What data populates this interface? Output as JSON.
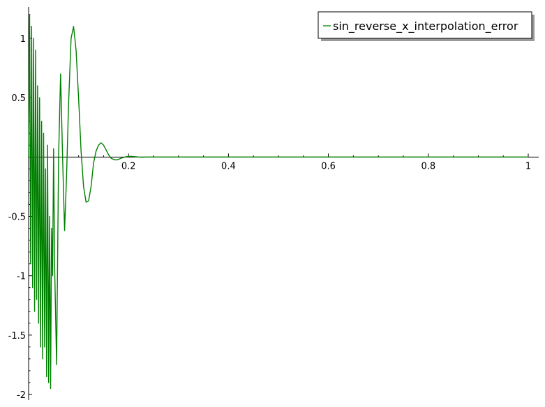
{
  "chart_data": {
    "type": "line",
    "title": "",
    "xlabel": "",
    "ylabel": "",
    "xlim": [
      0,
      1.02
    ],
    "ylim": [
      -2.0,
      1.25
    ],
    "x_ticks": [
      0.2,
      0.4,
      0.6,
      0.8,
      1.0
    ],
    "x_tick_labels": [
      "0.2",
      "0.4",
      "0.6",
      "0.8",
      "1"
    ],
    "y_ticks": [
      -2,
      -1.5,
      -1,
      -0.5,
      0.5,
      1
    ],
    "y_tick_labels": [
      "-2",
      "-1.5",
      "-1",
      "-0.5",
      "0.5",
      "1"
    ],
    "grid": false,
    "legend_position": "top-right",
    "series": [
      {
        "name": "sin_reverse_x_interpolation_error",
        "color": "#008000",
        "x": [
          0.0,
          0.002,
          0.004,
          0.006,
          0.008,
          0.01,
          0.012,
          0.014,
          0.016,
          0.018,
          0.02,
          0.022,
          0.024,
          0.026,
          0.028,
          0.03,
          0.032,
          0.034,
          0.036,
          0.038,
          0.04,
          0.042,
          0.044,
          0.046,
          0.048,
          0.05,
          0.052,
          0.056,
          0.06,
          0.064,
          0.068,
          0.072,
          0.076,
          0.08,
          0.085,
          0.09,
          0.095,
          0.1,
          0.105,
          0.11,
          0.115,
          0.12,
          0.125,
          0.13,
          0.135,
          0.14,
          0.145,
          0.15,
          0.155,
          0.16,
          0.165,
          0.17,
          0.175,
          0.18,
          0.185,
          0.19,
          0.195,
          0.2,
          0.205,
          0.21,
          0.215,
          0.22,
          0.225,
          0.23,
          0.235,
          0.24,
          0.245,
          0.25,
          0.255,
          0.26,
          0.27,
          0.28,
          0.29,
          0.3,
          0.31,
          0.32,
          0.33,
          0.34,
          0.35,
          0.36,
          0.38,
          0.4,
          0.45,
          0.5,
          0.6,
          0.7,
          0.8,
          0.9,
          1.0
        ],
        "y": [
          0.0,
          1.2,
          -0.9,
          1.1,
          -1.1,
          1.0,
          -1.3,
          0.9,
          -1.2,
          0.6,
          -1.4,
          0.5,
          -1.6,
          0.3,
          -1.7,
          0.2,
          -1.6,
          -0.1,
          -1.85,
          0.1,
          -1.9,
          -0.5,
          -1.95,
          -0.6,
          -1.0,
          0.07,
          -0.9,
          -1.75,
          0.0,
          0.7,
          0.0,
          -0.62,
          -0.15,
          0.45,
          1.0,
          1.1,
          0.9,
          0.5,
          0.05,
          -0.25,
          -0.38,
          -0.37,
          -0.25,
          -0.05,
          0.05,
          0.1,
          0.12,
          0.1,
          0.06,
          0.02,
          -0.01,
          -0.02,
          -0.025,
          -0.02,
          -0.01,
          -0.003,
          0.002,
          0.005,
          0.006,
          0.004,
          0.002,
          0.0,
          -0.001,
          -0.001,
          0.0,
          0.0,
          0.0,
          0.0,
          0.0,
          0.0,
          0.0,
          0.0,
          0.0,
          0.0,
          0.0,
          0.0,
          0.0,
          0.0,
          0.0,
          0.0,
          0.0,
          0.0,
          0.0,
          0.0,
          0.0,
          0.0,
          0.0,
          0.0,
          0.0
        ]
      }
    ]
  }
}
